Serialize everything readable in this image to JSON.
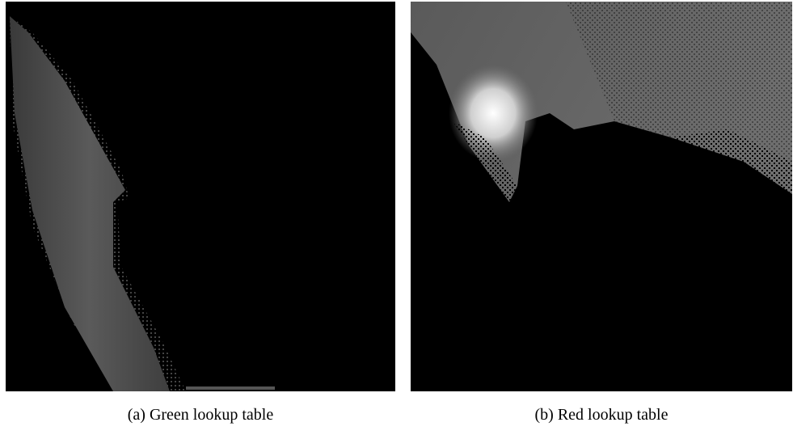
{
  "figure": {
    "subfigures": [
      {
        "caption": "(a) Green lookup table"
      },
      {
        "caption": "(b) Red lookup table"
      }
    ]
  }
}
